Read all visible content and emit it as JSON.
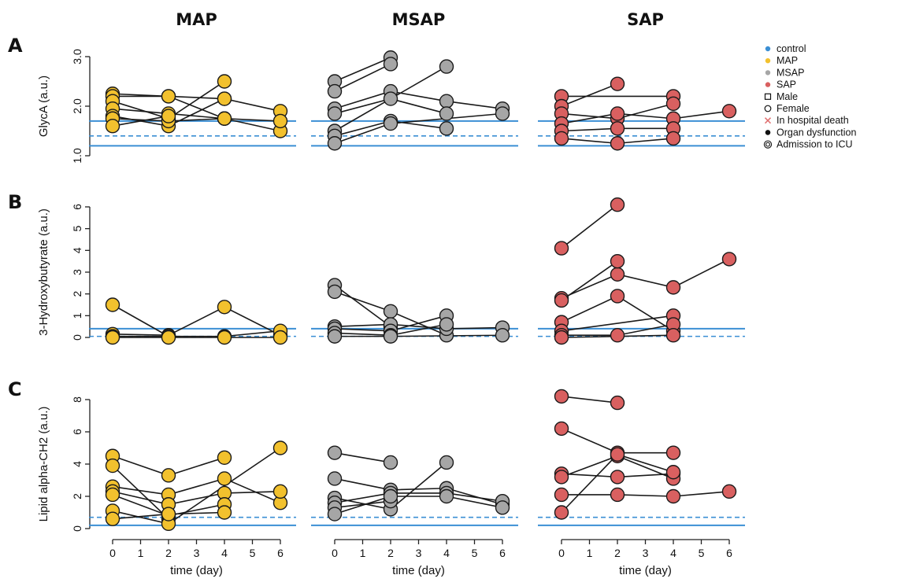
{
  "colors": {
    "control": "#3b8fd4",
    "MAP": "#f2c12e",
    "MSAP": "#a6a6a6",
    "SAP": "#d96060",
    "death": "#e07070",
    "dysfunction": "#111111"
  },
  "legend": [
    {
      "label": "control",
      "symbol": "dot",
      "color": "#3b8fd4"
    },
    {
      "label": "MAP",
      "symbol": "dot",
      "color": "#f2c12e"
    },
    {
      "label": "MSAP",
      "symbol": "dot",
      "color": "#a6a6a6"
    },
    {
      "label": "SAP",
      "symbol": "dot",
      "color": "#d96060"
    },
    {
      "label": "Male",
      "symbol": "square",
      "color": "#111111"
    },
    {
      "label": "Female",
      "symbol": "circle",
      "color": "#111111"
    },
    {
      "label": "In hospital death",
      "symbol": "cross",
      "color": "#e07070"
    },
    {
      "label": "Organ dysfunction",
      "symbol": "filled",
      "color": "#111111"
    },
    {
      "label": "Admission to ICU",
      "symbol": "double-circle",
      "color": "#111111"
    }
  ],
  "chart_data": {
    "type": "line",
    "columns": [
      "MAP",
      "MSAP",
      "SAP"
    ],
    "xlabel": "time (day)",
    "x_ticks": [
      0,
      1,
      2,
      3,
      4,
      5,
      6
    ],
    "xlim": [
      0,
      6
    ],
    "rows": [
      {
        "letter": "A",
        "ylabel": "GlycA (a.u.)",
        "ylim": [
          1.0,
          3.0
        ],
        "y_ticks": [
          "1.0",
          "2.0",
          "3.0"
        ],
        "y_tick_values": [
          1.0,
          2.0,
          3.0
        ],
        "control_solid": [
          1.2,
          1.7
        ],
        "control_dashed": [
          1.4
        ],
        "panels": {
          "MAP": [
            {
              "x": [
                0,
                2,
                4
              ],
              "y": [
                2.25,
                2.2,
                1.75
              ]
            },
            {
              "x": [
                0,
                2,
                4,
                6
              ],
              "y": [
                2.2,
                2.2,
                2.15,
                1.9
              ]
            },
            {
              "x": [
                0,
                2,
                4
              ],
              "y": [
                2.1,
                1.75,
                2.5
              ]
            },
            {
              "x": [
                0,
                2,
                4,
                6
              ],
              "y": [
                1.95,
                1.85,
                1.75,
                1.5
              ]
            },
            {
              "x": [
                0,
                2,
                4
              ],
              "y": [
                1.8,
                1.6,
                2.15
              ]
            },
            {
              "x": [
                0,
                2,
                4,
                6
              ],
              "y": [
                1.75,
                1.7,
                1.75,
                1.7
              ]
            },
            {
              "x": [
                0,
                2
              ],
              "y": [
                1.6,
                1.8
              ]
            }
          ],
          "MSAP": [
            {
              "x": [
                0,
                2
              ],
              "y": [
                2.5,
                2.98
              ]
            },
            {
              "x": [
                0,
                2
              ],
              "y": [
                2.3,
                2.85
              ]
            },
            {
              "x": [
                0,
                2,
                4,
                6
              ],
              "y": [
                1.95,
                2.3,
                2.1,
                1.95
              ]
            },
            {
              "x": [
                0,
                2,
                4
              ],
              "y": [
                1.85,
                2.15,
                1.85
              ]
            },
            {
              "x": [
                0,
                4
              ],
              "y": [
                1.5,
                2.8
              ]
            },
            {
              "x": [
                0,
                2,
                4
              ],
              "y": [
                1.4,
                1.7,
                1.55
              ]
            },
            {
              "x": [
                0,
                2,
                6
              ],
              "y": [
                1.25,
                1.65,
                1.85
              ]
            }
          ],
          "SAP": [
            {
              "x": [
                0,
                4
              ],
              "y": [
                2.2,
                2.2
              ]
            },
            {
              "x": [
                0,
                2
              ],
              "y": [
                2.0,
                2.45
              ]
            },
            {
              "x": [
                0,
                2,
                4
              ],
              "y": [
                1.85,
                1.75,
                2.05
              ]
            },
            {
              "x": [
                0,
                2,
                4,
                6
              ],
              "y": [
                1.65,
                1.85,
                1.75,
                1.9
              ]
            },
            {
              "x": [
                0,
                2,
                4
              ],
              "y": [
                1.5,
                1.55,
                1.55
              ]
            },
            {
              "x": [
                0,
                2,
                4
              ],
              "y": [
                1.35,
                1.25,
                1.35
              ]
            }
          ]
        }
      },
      {
        "letter": "B",
        "ylabel": "3-Hydroxybutyrate (a.u.)",
        "ylim": [
          0,
          6
        ],
        "y_ticks": [
          "0",
          "1",
          "2",
          "3",
          "4",
          "5",
          "6"
        ],
        "y_tick_values": [
          0,
          1,
          2,
          3,
          4,
          5,
          6
        ],
        "control_solid": [
          0.4
        ],
        "control_dashed": [
          0.05
        ],
        "panels": {
          "MAP": [
            {
              "x": [
                0,
                2
              ],
              "y": [
                1.5,
                0.05
              ]
            },
            {
              "x": [
                0,
                2,
                4,
                6
              ],
              "y": [
                0.15,
                0.1,
                1.4,
                0.1
              ]
            },
            {
              "x": [
                0,
                2,
                4,
                6
              ],
              "y": [
                0.05,
                0.05,
                0.05,
                0.3
              ]
            },
            {
              "x": [
                0,
                2,
                4,
                6
              ],
              "y": [
                0.0,
                0.0,
                0.0,
                0.0
              ]
            }
          ],
          "MSAP": [
            {
              "x": [
                0,
                2
              ],
              "y": [
                2.4,
                0.5
              ]
            },
            {
              "x": [
                0,
                2,
                4
              ],
              "y": [
                2.1,
                1.2,
                0.1
              ]
            },
            {
              "x": [
                0,
                2,
                4,
                6
              ],
              "y": [
                0.5,
                0.6,
                0.4,
                0.45
              ]
            },
            {
              "x": [
                0,
                2,
                4
              ],
              "y": [
                0.4,
                0.3,
                1.0
              ]
            },
            {
              "x": [
                0,
                2,
                4
              ],
              "y": [
                0.2,
                0.1,
                0.6
              ]
            },
            {
              "x": [
                0,
                2,
                6
              ],
              "y": [
                0.05,
                0.05,
                0.1
              ]
            }
          ],
          "SAP": [
            {
              "x": [
                0,
                2
              ],
              "y": [
                4.1,
                6.1
              ]
            },
            {
              "x": [
                0,
                2,
                4,
                6
              ],
              "y": [
                1.8,
                2.9,
                2.3,
                3.6
              ]
            },
            {
              "x": [
                0,
                2
              ],
              "y": [
                1.7,
                3.5
              ]
            },
            {
              "x": [
                0,
                2,
                4
              ],
              "y": [
                0.7,
                1.9,
                0.3
              ]
            },
            {
              "x": [
                0,
                4
              ],
              "y": [
                0.3,
                1.0
              ]
            },
            {
              "x": [
                0,
                2,
                4
              ],
              "y": [
                0.1,
                0.1,
                0.6
              ]
            },
            {
              "x": [
                0,
                4
              ],
              "y": [
                0.0,
                0.1
              ]
            }
          ]
        }
      },
      {
        "letter": "C",
        "ylabel": "Lipid alpha-CH2 (a.u.)",
        "ylim": [
          0,
          8
        ],
        "y_ticks": [
          "0",
          "2",
          "4",
          "6",
          "8"
        ],
        "y_tick_values": [
          0,
          2,
          4,
          6,
          8
        ],
        "control_solid": [
          0.2
        ],
        "control_dashed": [
          0.7
        ],
        "panels": {
          "MAP": [
            {
              "x": [
                0,
                2,
                4
              ],
              "y": [
                4.5,
                3.3,
                4.4
              ]
            },
            {
              "x": [
                0,
                2
              ],
              "y": [
                3.9,
                0.6
              ]
            },
            {
              "x": [
                0,
                2,
                4,
                6
              ],
              "y": [
                2.6,
                2.1,
                3.1,
                1.6
              ]
            },
            {
              "x": [
                0,
                2,
                4,
                6
              ],
              "y": [
                2.3,
                1.5,
                2.2,
                2.3
              ]
            },
            {
              "x": [
                0,
                2,
                4
              ],
              "y": [
                2.1,
                0.8,
                1.5
              ]
            },
            {
              "x": [
                0,
                2,
                6
              ],
              "y": [
                1.1,
                0.3,
                5.0
              ]
            },
            {
              "x": [
                0,
                2,
                4
              ],
              "y": [
                0.6,
                0.9,
                1.0
              ]
            }
          ],
          "MSAP": [
            {
              "x": [
                0,
                2
              ],
              "y": [
                4.7,
                4.1
              ]
            },
            {
              "x": [
                0,
                2,
                4,
                6
              ],
              "y": [
                3.1,
                2.4,
                2.5,
                1.5
              ]
            },
            {
              "x": [
                0,
                2,
                4
              ],
              "y": [
                1.9,
                1.2,
                4.1
              ]
            },
            {
              "x": [
                0,
                2,
                4,
                6
              ],
              "y": [
                1.6,
                2.2,
                2.2,
                1.7
              ]
            },
            {
              "x": [
                0,
                2
              ],
              "y": [
                1.3,
                1.7
              ]
            },
            {
              "x": [
                0,
                2,
                4,
                6
              ],
              "y": [
                0.9,
                2.0,
                2.0,
                1.3
              ]
            }
          ],
          "SAP": [
            {
              "x": [
                0,
                2
              ],
              "y": [
                8.2,
                7.8
              ]
            },
            {
              "x": [
                0,
                2,
                4
              ],
              "y": [
                6.2,
                4.7,
                4.7
              ]
            },
            {
              "x": [
                0,
                2,
                4
              ],
              "y": [
                3.4,
                3.2,
                3.4
              ]
            },
            {
              "x": [
                0,
                2,
                4
              ],
              "y": [
                3.2,
                4.5,
                3.1
              ]
            },
            {
              "x": [
                0,
                2,
                4,
                6
              ],
              "y": [
                2.1,
                2.1,
                2.0,
                2.3
              ]
            },
            {
              "x": [
                0,
                2,
                4
              ],
              "y": [
                1.0,
                4.6,
                3.5
              ]
            }
          ]
        }
      }
    ]
  }
}
